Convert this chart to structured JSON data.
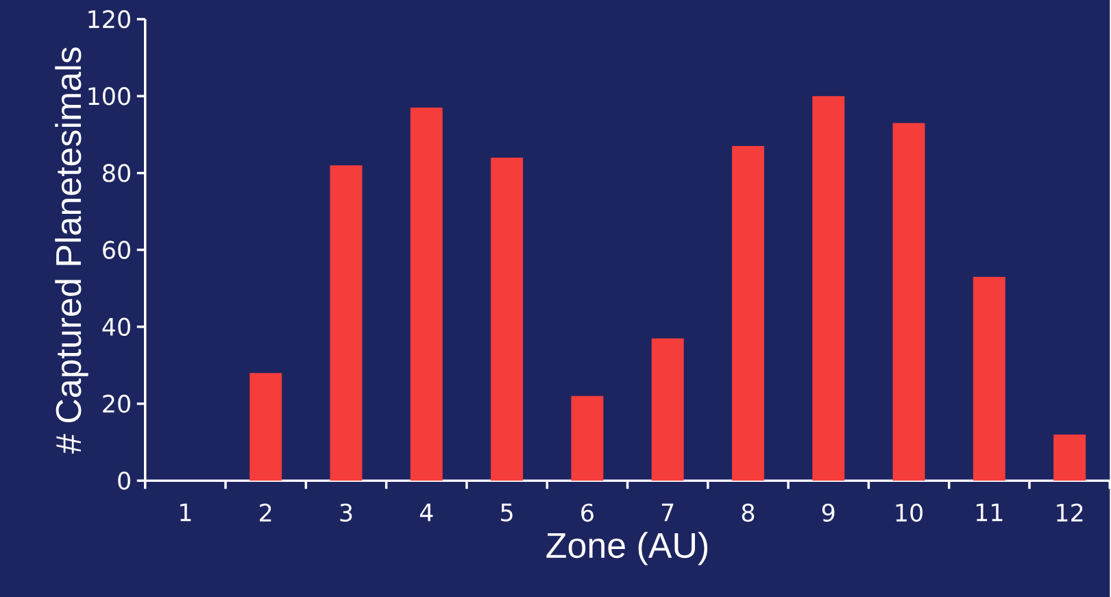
{
  "chart_data": {
    "type": "bar",
    "xlabel": "Zone (AU)",
    "ylabel": "# Captured Planetesimals",
    "categories": [
      "1",
      "2",
      "3",
      "4",
      "5",
      "6",
      "7",
      "8",
      "9",
      "10",
      "11",
      "12"
    ],
    "values": [
      0,
      28,
      82,
      97,
      84,
      22,
      37,
      87,
      100,
      93,
      53,
      12
    ],
    "color": "#f53d3b",
    "ylim": [
      0,
      120
    ],
    "yticks": [
      0,
      20,
      40,
      60,
      80,
      100,
      120
    ]
  }
}
